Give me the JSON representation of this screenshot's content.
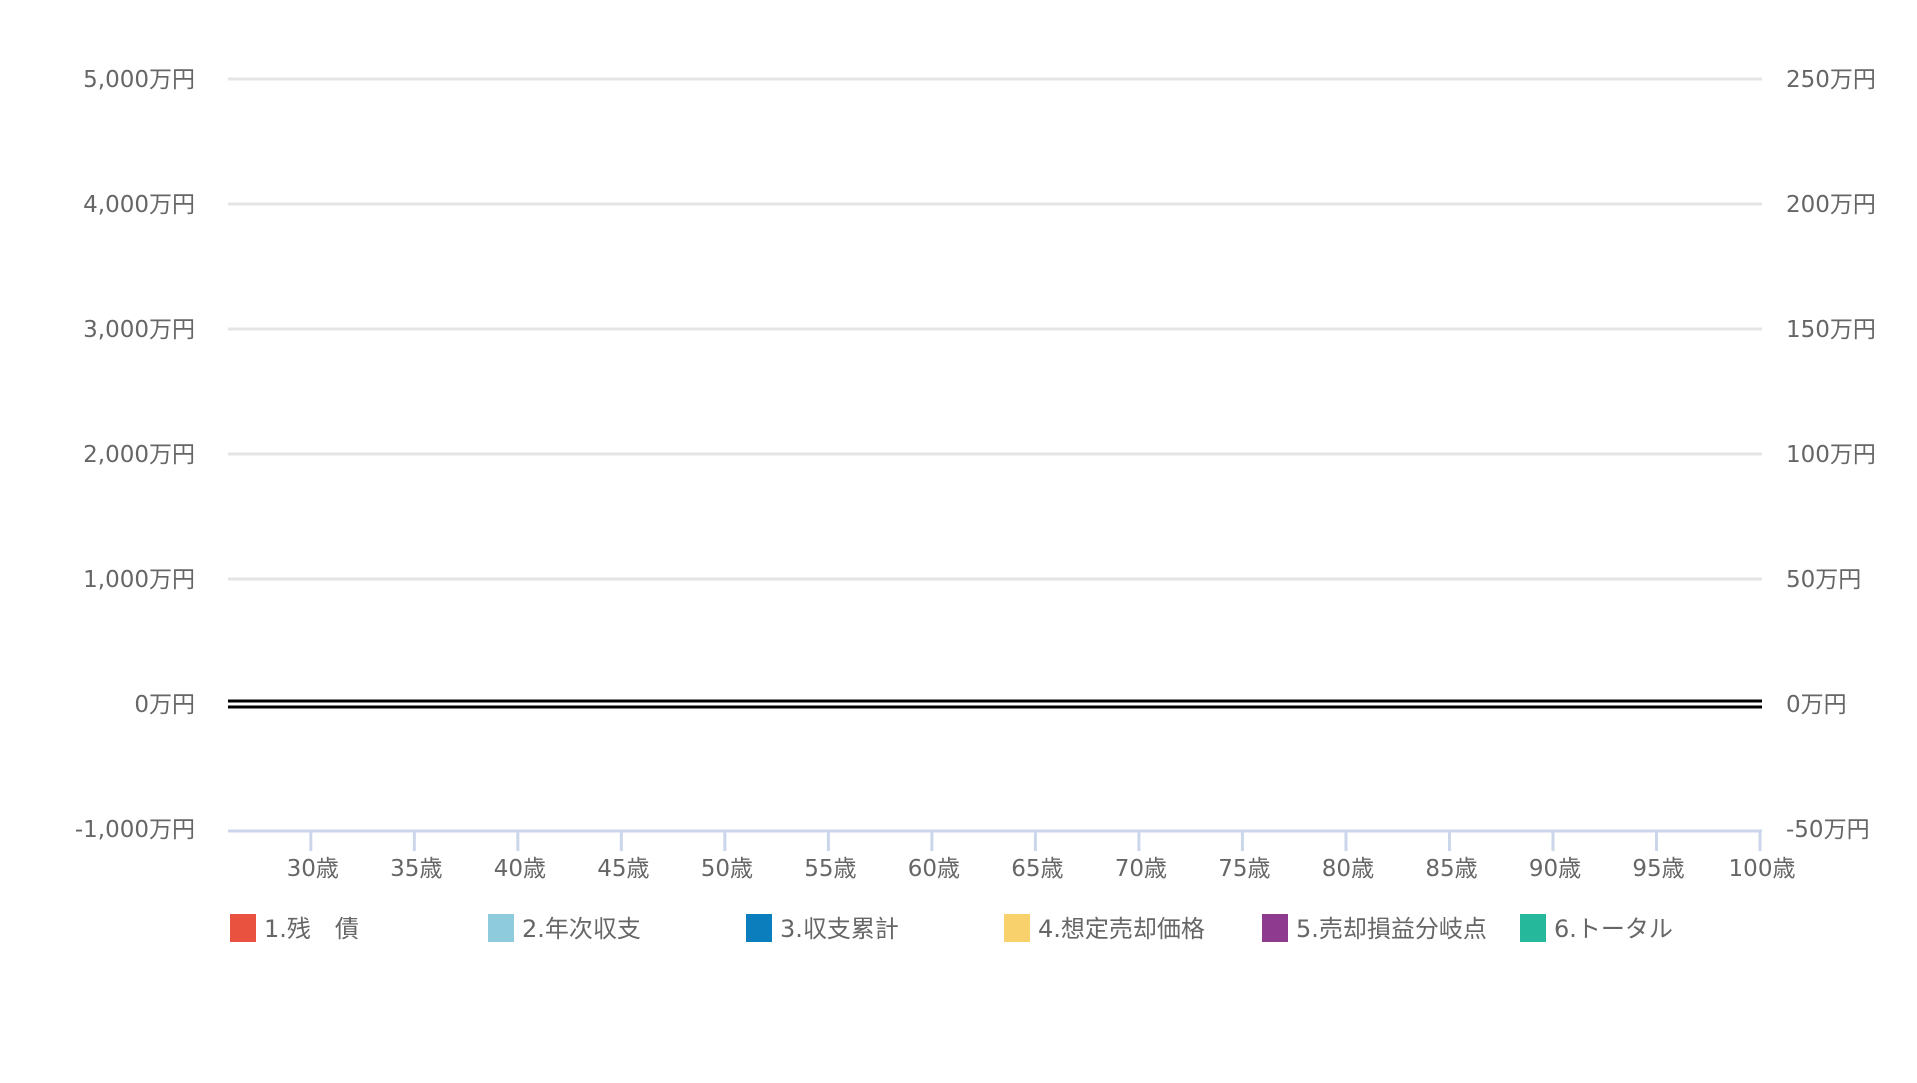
{
  "chart_data": {
    "type": "line",
    "title": "",
    "xlabel": "",
    "ylabel": "",
    "x_categories": [
      "30歳",
      "35歳",
      "40歳",
      "45歳",
      "50歳",
      "55歳",
      "60歳",
      "65歳",
      "70歳",
      "75歳",
      "80歳",
      "85歳",
      "90歳",
      "95歳",
      "100歳"
    ],
    "x_range": [
      26,
      100
    ],
    "left_axis": {
      "ylim": [
        -1000,
        5000
      ],
      "ticks": [
        -1000,
        0,
        1000,
        2000,
        3000,
        4000,
        5000
      ],
      "tick_labels": [
        "-1,000万円",
        "0万円",
        "1,000万円",
        "2,000万円",
        "3,000万円",
        "4,000万円",
        "5,000万円"
      ]
    },
    "right_axis": {
      "ylim": [
        -50,
        250
      ],
      "ticks": [
        -50,
        0,
        50,
        100,
        150,
        200,
        250
      ],
      "tick_labels": [
        "-50万円",
        "0万円",
        "50万円",
        "100万円",
        "150万円",
        "200万円",
        "250万円"
      ]
    },
    "grid": true,
    "legend_position": "bottom",
    "series": [
      {
        "name": "1.残　債",
        "color": "#e8523f",
        "values": []
      },
      {
        "name": "2.年次収支",
        "color": "#8ecbdc",
        "values": []
      },
      {
        "name": "3.収支累計",
        "color": "#0b7fbd",
        "values": []
      },
      {
        "name": "4.想定売却価格",
        "color": "#f8d16c",
        "values": []
      },
      {
        "name": "5.売却損益分岐点",
        "color": "#8e3b8f",
        "values": []
      },
      {
        "name": "6.トータル",
        "color": "#25b89a",
        "values": []
      }
    ],
    "colors": {
      "grid": "#e4e4e4",
      "zero_line": "#000000",
      "x_axis": "#ccd6eb",
      "tick_text": "#666666"
    }
  }
}
